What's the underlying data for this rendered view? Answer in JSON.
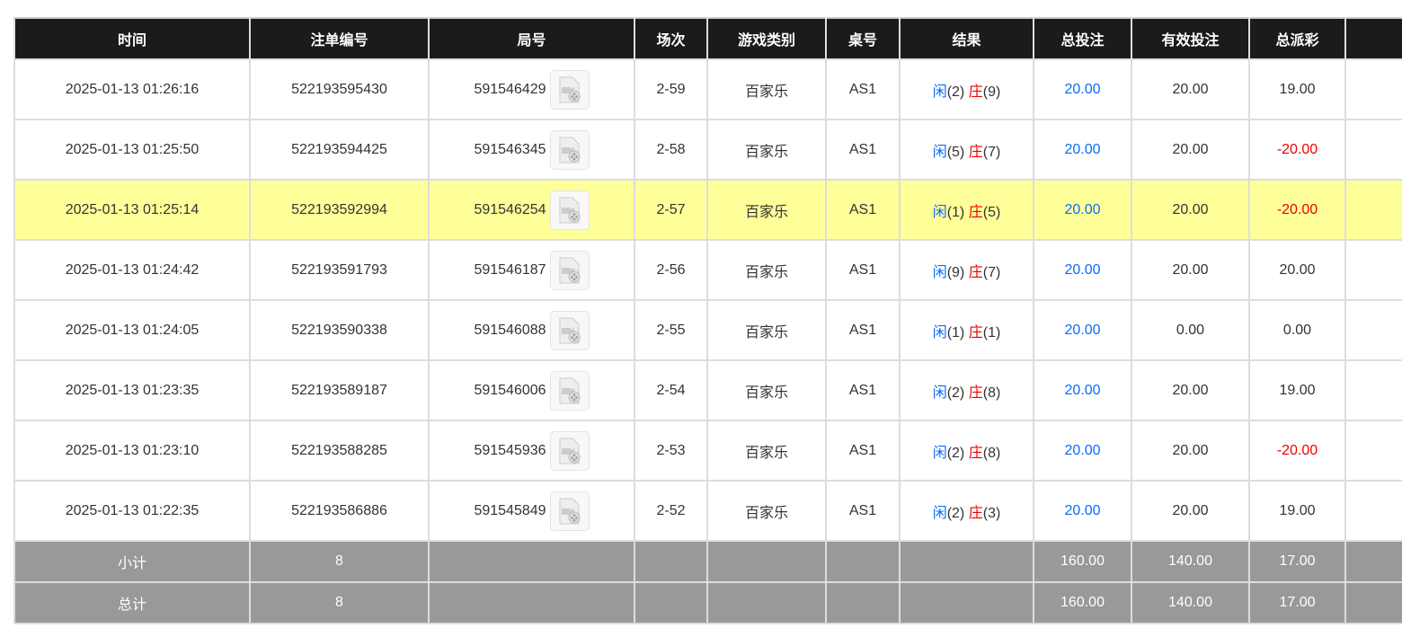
{
  "headers": [
    "时间",
    "注单编号",
    "局号",
    "场次",
    "游戏类别",
    "桌号",
    "结果",
    "总投注",
    "有效投注",
    "总派彩",
    ""
  ],
  "rows": [
    {
      "time": "2025-01-13 01:26:16",
      "bet_no": "522193595430",
      "round": "591546429",
      "shoe": "2-59",
      "game": "百家乐",
      "table": "AS1",
      "player_label": "闲",
      "player": "(2)",
      "banker_label": "庄",
      "banker": "(9)",
      "total": "20.00",
      "valid": "20.00",
      "payout": "19.00",
      "payout_negative": false
    },
    {
      "time": "2025-01-13 01:25:50",
      "bet_no": "522193594425",
      "round": "591546345",
      "shoe": "2-58",
      "game": "百家乐",
      "table": "AS1",
      "player_label": "闲",
      "player": "(5)",
      "banker_label": "庄",
      "banker": "(7)",
      "total": "20.00",
      "valid": "20.00",
      "payout": "-20.00",
      "payout_negative": true
    },
    {
      "time": "2025-01-13 01:25:14",
      "bet_no": "522193592994",
      "round": "591546254",
      "shoe": "2-57",
      "game": "百家乐",
      "table": "AS1",
      "player_label": "闲",
      "player": "(1)",
      "banker_label": "庄",
      "banker": "(5)",
      "total": "20.00",
      "valid": "20.00",
      "payout": "-20.00",
      "payout_negative": true,
      "highlighted": true
    },
    {
      "time": "2025-01-13 01:24:42",
      "bet_no": "522193591793",
      "round": "591546187",
      "shoe": "2-56",
      "game": "百家乐",
      "table": "AS1",
      "player_label": "闲",
      "player": "(9)",
      "banker_label": "庄",
      "banker": "(7)",
      "total": "20.00",
      "valid": "20.00",
      "payout": "20.00",
      "payout_negative": false
    },
    {
      "time": "2025-01-13 01:24:05",
      "bet_no": "522193590338",
      "round": "591546088",
      "shoe": "2-55",
      "game": "百家乐",
      "table": "AS1",
      "player_label": "闲",
      "player": "(1)",
      "banker_label": "庄",
      "banker": "(1)",
      "total": "20.00",
      "valid": "0.00",
      "payout": "0.00",
      "payout_negative": false
    },
    {
      "time": "2025-01-13 01:23:35",
      "bet_no": "522193589187",
      "round": "591546006",
      "shoe": "2-54",
      "game": "百家乐",
      "table": "AS1",
      "player_label": "闲",
      "player": "(2)",
      "banker_label": "庄",
      "banker": "(8)",
      "total": "20.00",
      "valid": "20.00",
      "payout": "19.00",
      "payout_negative": false
    },
    {
      "time": "2025-01-13 01:23:10",
      "bet_no": "522193588285",
      "round": "591545936",
      "shoe": "2-53",
      "game": "百家乐",
      "table": "AS1",
      "player_label": "闲",
      "player": "(2)",
      "banker_label": "庄",
      "banker": "(8)",
      "total": "20.00",
      "valid": "20.00",
      "payout": "-20.00",
      "payout_negative": true
    },
    {
      "time": "2025-01-13 01:22:35",
      "bet_no": "522193586886",
      "round": "591545849",
      "shoe": "2-52",
      "game": "百家乐",
      "table": "AS1",
      "player_label": "闲",
      "player": "(2)",
      "banker_label": "庄",
      "banker": "(3)",
      "total": "20.00",
      "valid": "20.00",
      "payout": "19.00",
      "payout_negative": false
    }
  ],
  "summary": [
    {
      "label": "小计",
      "count": "8",
      "total": "160.00",
      "valid": "140.00",
      "payout": "17.00"
    },
    {
      "label": "总计",
      "count": "8",
      "total": "160.00",
      "valid": "140.00",
      "payout": "17.00"
    }
  ],
  "colors": {
    "player": "#0a6cf5",
    "banker": "#ee0000",
    "header_bg": "#1b1b1b",
    "highlight": "#ffff99",
    "summary_bg": "#999999"
  },
  "icons": {
    "replay": "video-file-icon"
  }
}
